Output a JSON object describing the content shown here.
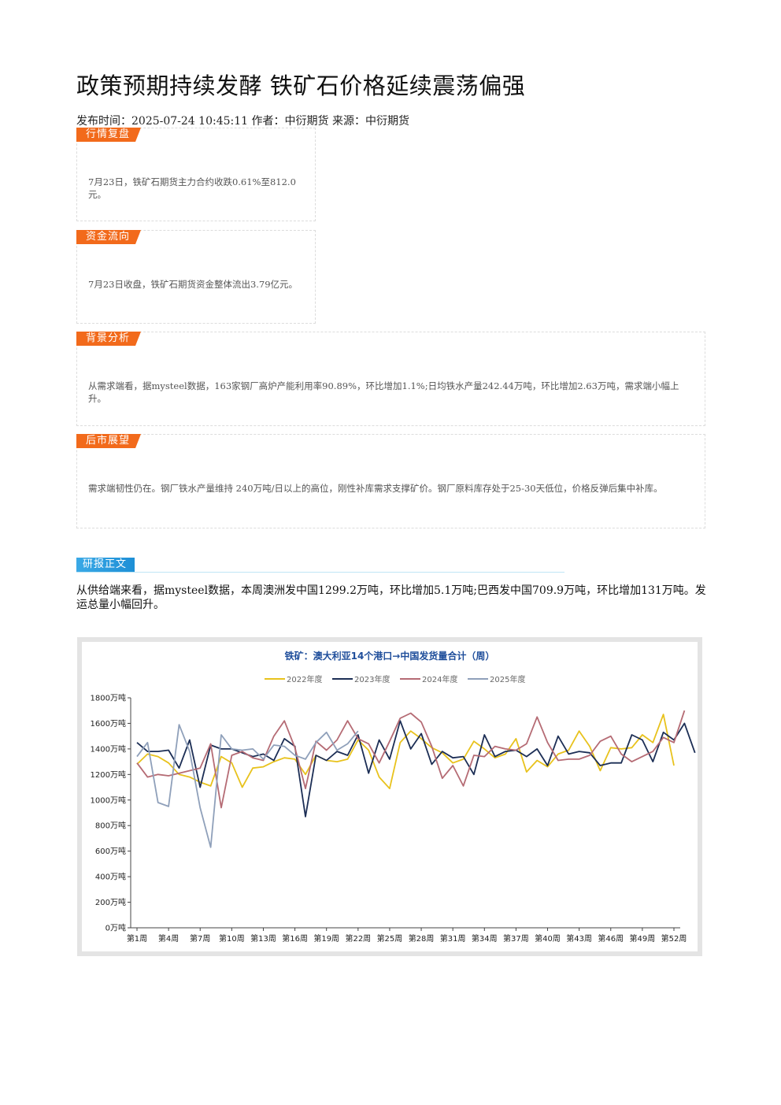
{
  "article": {
    "title": "政策预期持续发酵 铁矿石价格延续震荡偏强",
    "meta": "发布时间：2025-07-24 10:45:11 作者：中衍期货 来源：中衍期货"
  },
  "sections": [
    {
      "tag": "行情复盘",
      "text": "7月23日，铁矿石期货主力合约收跌0.61%至812.0元。"
    },
    {
      "tag": "资金流向",
      "text": "7月23日收盘，铁矿石期货资金整体流出3.79亿元。"
    },
    {
      "tag": "背景分析",
      "text": "从需求端看，据mysteel数据，163家钢厂高炉产能利用率90.89%，环比增加1.1%;日均铁水产量242.44万吨，环比增加2.63万吨，需求端小幅上升。"
    },
    {
      "tag": "后市展望",
      "text": "需求端韧性仍在。钢厂铁水产量维持 240万吨/日以上的高位，刚性补库需求支撑矿价。钢厂原料库存处于25-30天低位，价格反弹后集中补库。"
    }
  ],
  "report": {
    "tag": "研报正文",
    "text": "从供给端来看，据mysteel数据，本周澳洲发中国1299.2万吨，环比增加5.1万吨;巴西发中国709.9万吨，环比增加131万吨。发运总量小幅回升。"
  },
  "chart_data": {
    "type": "line",
    "title": "铁矿：澳大利亚14个港口→中国发货量合计（周）",
    "x_ticks": [
      "第1周",
      "第4周",
      "第7周",
      "第10周",
      "第13周",
      "第16周",
      "第19周",
      "第22周",
      "第25周",
      "第28周",
      "第31周",
      "第34周",
      "第37周",
      "第40周",
      "第43周",
      "第46周",
      "第49周",
      "第52周"
    ],
    "y_ticks": [
      "0万吨",
      "200万吨",
      "400万吨",
      "600万吨",
      "800万吨",
      "1000万吨",
      "1200万吨",
      "1400万吨",
      "1600万吨",
      "1800万吨"
    ],
    "ylim": [
      0,
      1800
    ],
    "xlim": [
      1,
      52
    ],
    "legend_position": "top",
    "series": [
      {
        "name": "2022年度",
        "color": "#e8c21c",
        "values": [
          1280,
          1360,
          1340,
          1290,
          1200,
          1180,
          1140,
          1110,
          1340,
          1290,
          1100,
          1250,
          1260,
          1300,
          1330,
          1320,
          1200,
          1350,
          1310,
          1300,
          1320,
          1470,
          1390,
          1180,
          1090,
          1450,
          1540,
          1480,
          1410,
          1370,
          1290,
          1320,
          1460,
          1400,
          1330,
          1360,
          1480,
          1220,
          1310,
          1260,
          1360,
          1390,
          1540,
          1420,
          1230,
          1410,
          1400,
          1410,
          1510,
          1450,
          1670,
          1270
        ]
      },
      {
        "name": "2023年度",
        "color": "#1c2e55",
        "values": [
          1450,
          1380,
          1380,
          1390,
          1250,
          1470,
          1100,
          1430,
          1400,
          1400,
          1370,
          1340,
          1360,
          1310,
          1480,
          1420,
          870,
          1350,
          1310,
          1380,
          1350,
          1510,
          1210,
          1470,
          1320,
          1620,
          1400,
          1520,
          1280,
          1380,
          1330,
          1340,
          1200,
          1510,
          1340,
          1380,
          1390,
          1340,
          1400,
          1270,
          1500,
          1360,
          1380,
          1370,
          1270,
          1290,
          1290,
          1510,
          1470,
          1300,
          1530,
          1470,
          1600,
          1370
        ]
      },
      {
        "name": "2024年度",
        "color": "#b56b74",
        "values": [
          1290,
          1180,
          1200,
          1190,
          1210,
          1230,
          1250,
          1440,
          940,
          1350,
          1380,
          1330,
          1310,
          1500,
          1620,
          1410,
          1090,
          1460,
          1390,
          1470,
          1620,
          1480,
          1440,
          1290,
          1460,
          1640,
          1680,
          1610,
          1420,
          1170,
          1270,
          1110,
          1350,
          1340,
          1420,
          1400,
          1390,
          1440,
          1650,
          1450,
          1310,
          1320,
          1320,
          1350,
          1460,
          1500,
          1360,
          1300,
          1340,
          1380,
          1490,
          1450,
          1700
        ]
      },
      {
        "name": "2025年度",
        "color": "#8fa0ba",
        "values": [
          1340,
          1450,
          980,
          950,
          1590,
          1380,
          940,
          630,
          1510,
          1400,
          1390,
          1400,
          1320,
          1430,
          1420,
          1350,
          1320,
          1450,
          1530,
          1390,
          1440,
          1540
        ]
      }
    ]
  }
}
